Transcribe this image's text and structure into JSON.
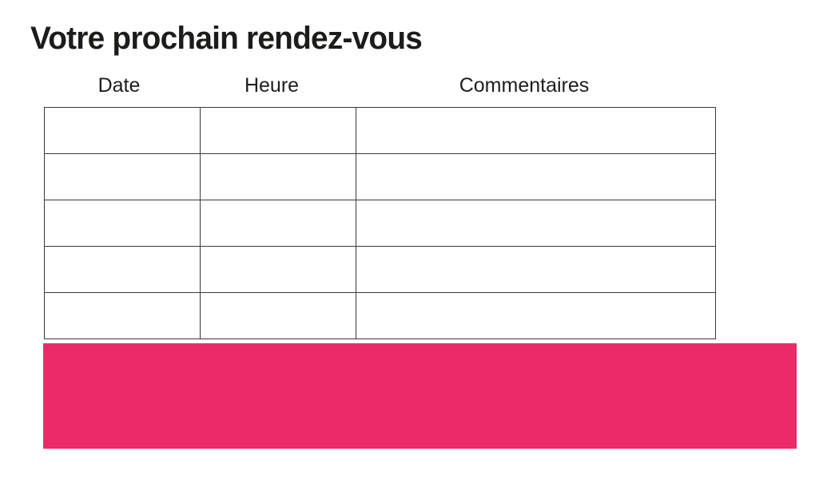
{
  "page": {
    "title": "Votre prochain rendez-vous"
  },
  "table": {
    "columns": [
      {
        "key": "date",
        "label": "Date"
      },
      {
        "key": "heure",
        "label": "Heure"
      },
      {
        "key": "commentaires",
        "label": "Commentaires"
      }
    ],
    "rows": [
      {
        "date": "",
        "heure": "",
        "commentaires": ""
      },
      {
        "date": "",
        "heure": "",
        "commentaires": ""
      },
      {
        "date": "",
        "heure": "",
        "commentaires": ""
      },
      {
        "date": "",
        "heure": "",
        "commentaires": ""
      },
      {
        "date": "",
        "heure": "",
        "commentaires": ""
      }
    ]
  },
  "banner": {
    "text": ""
  },
  "colors": {
    "accent_pink": "#ED2A68",
    "table_border": "#3a3a3a",
    "text": "#1d1d1b"
  }
}
